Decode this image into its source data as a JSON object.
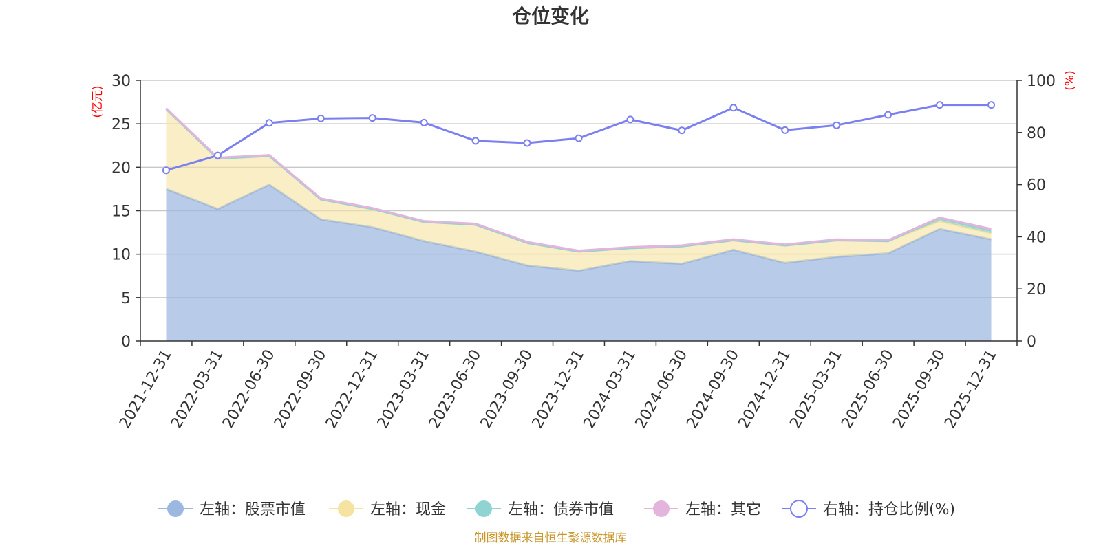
{
  "chart_data": {
    "type": "area",
    "title": "仓位变化",
    "left_axis": {
      "unit": "(亿元)",
      "ylim": [
        0,
        30
      ],
      "ticks": [
        0,
        5,
        10,
        15,
        20,
        25,
        30
      ]
    },
    "right_axis": {
      "unit": "(%)",
      "ylim": [
        0,
        100
      ],
      "ticks": [
        0,
        20,
        40,
        60,
        80,
        100
      ]
    },
    "categories": [
      "2021-12-31",
      "2022-03-31",
      "2022-06-30",
      "2022-09-30",
      "2022-12-31",
      "2023-03-31",
      "2023-06-30",
      "2023-09-30",
      "2023-12-31",
      "2024-03-31",
      "2024-06-30",
      "2024-09-30",
      "2024-12-31",
      "2025-03-31",
      "2025-06-30",
      "2025-09-30",
      "2025-12-31"
    ],
    "series": [
      {
        "name": "左轴：股票市值",
        "axis": "left",
        "kind": "stacked-area",
        "color": "#9cb7e0",
        "values": [
          17.5,
          15.2,
          18.0,
          14.0,
          13.1,
          11.5,
          10.3,
          8.7,
          8.1,
          9.2,
          8.9,
          10.5,
          9.0,
          9.7,
          10.1,
          12.9,
          11.7
        ]
      },
      {
        "name": "左轴：现金",
        "axis": "left",
        "kind": "stacked-area",
        "color": "#f6e3a1",
        "values": [
          9.2,
          5.8,
          3.3,
          2.3,
          2.1,
          2.2,
          3.1,
          2.6,
          2.2,
          1.5,
          2.0,
          1.1,
          2.0,
          1.9,
          1.4,
          0.9,
          0.7
        ]
      },
      {
        "name": "左轴：债券市值",
        "axis": "left",
        "kind": "stacked-area",
        "color": "#8fd3d3",
        "values": [
          0,
          0,
          0,
          0,
          0,
          0,
          0,
          0,
          0,
          0,
          0,
          0,
          0,
          0,
          0,
          0.3,
          0.3
        ]
      },
      {
        "name": "左轴：其它",
        "axis": "left",
        "kind": "stacked-area",
        "color": "#e3b4dc",
        "values": [
          0.1,
          0.1,
          0.1,
          0.1,
          0.1,
          0.1,
          0.1,
          0.1,
          0.1,
          0.1,
          0.1,
          0.1,
          0.1,
          0.1,
          0.1,
          0.1,
          0.2
        ]
      },
      {
        "name": "右轴：持仓比例(%)",
        "axis": "right",
        "kind": "line",
        "color": "#7b7ff0",
        "values": [
          65.5,
          71.2,
          83.7,
          85.4,
          85.6,
          83.8,
          76.8,
          76.0,
          77.8,
          85.0,
          80.8,
          89.5,
          80.9,
          82.8,
          86.8,
          90.6,
          90.6
        ]
      }
    ],
    "legend_position": "bottom",
    "grid": true
  },
  "footer": {
    "source": "制图数据来自恒生聚源数据库"
  }
}
